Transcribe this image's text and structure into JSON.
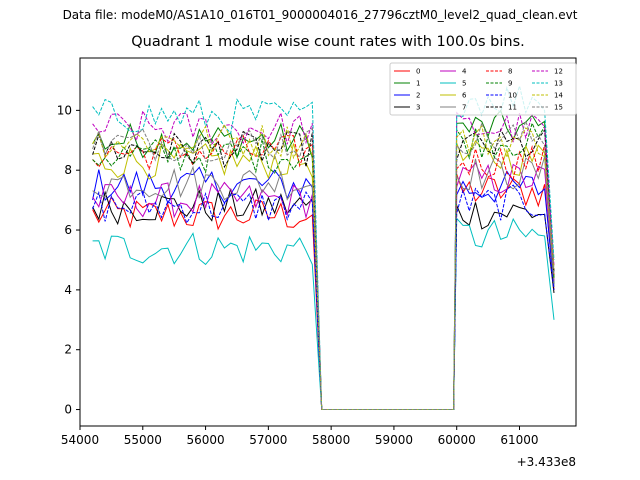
{
  "chart_data": {
    "type": "line",
    "suptitle": "Data file: modeM0/AS1A10_016T01_9000004016_27796cztM0_level2_quad_clean.evt",
    "title": "Quadrant 1 module wise count rates with 100.0s bins.",
    "xlabel": "",
    "ylabel": "",
    "x_offset_label": "+3.433e8",
    "xlim": [
      54000,
      61900
    ],
    "ylim": [
      -0.55,
      11.75
    ],
    "xticks": [
      "54000",
      "55000",
      "56000",
      "57000",
      "58000",
      "59000",
      "60000",
      "61000"
    ],
    "yticks": [
      "0",
      "2",
      "4",
      "6",
      "8",
      "10"
    ],
    "x_start": 54200,
    "bin": 100,
    "gap": [
      57850,
      59950
    ],
    "x_end": 61550,
    "series": [
      {
        "name": "0",
        "color": "#ff0000",
        "dash": "solid",
        "level": 6.5,
        "after": 7.3,
        "last": 4.0
      },
      {
        "name": "1",
        "color": "#008000",
        "dash": "solid",
        "level": 9.0,
        "after": 9.4,
        "last": 4.2
      },
      {
        "name": "2",
        "color": "#0000ff",
        "dash": "solid",
        "level": 7.5,
        "after": 7.4,
        "last": 4.1
      },
      {
        "name": "3",
        "color": "#000000",
        "dash": "solid",
        "level": 6.8,
        "after": 6.6,
        "last": 3.9
      },
      {
        "name": "4",
        "color": "#bf00bf",
        "dash": "solid",
        "level": 7.0,
        "after": 7.7,
        "last": 4.3
      },
      {
        "name": "5",
        "color": "#00bfbf",
        "dash": "solid",
        "level": 5.4,
        "after": 5.8,
        "last": 3.0
      },
      {
        "name": "6",
        "color": "#bfbf00",
        "dash": "solid",
        "level": 8.3,
        "after": 8.4,
        "last": 4.4
      },
      {
        "name": "7",
        "color": "#808080",
        "dash": "solid",
        "level": 7.6,
        "after": 7.9,
        "last": 4.1
      },
      {
        "name": "8",
        "color": "#ff0000",
        "dash": "dashed",
        "level": 8.6,
        "after": 8.3,
        "last": 4.5
      },
      {
        "name": "9",
        "color": "#008000",
        "dash": "dashed",
        "level": 8.5,
        "after": 9.0,
        "last": 4.4
      },
      {
        "name": "10",
        "color": "#0000ff",
        "dash": "dashed",
        "level": 6.8,
        "after": 6.9,
        "last": 4.0
      },
      {
        "name": "11",
        "color": "#000000",
        "dash": "dashed",
        "level": 8.7,
        "after": 8.8,
        "last": 4.6
      },
      {
        "name": "12",
        "color": "#bf00bf",
        "dash": "dashed",
        "level": 9.4,
        "after": 9.4,
        "last": 4.8
      },
      {
        "name": "13",
        "color": "#00bfbf",
        "dash": "dashed",
        "level": 9.8,
        "after": 10.4,
        "last": 5.0
      },
      {
        "name": "14",
        "color": "#bfbf00",
        "dash": "dashed",
        "level": 9.0,
        "after": 9.0,
        "last": 4.7
      },
      {
        "name": "15",
        "color": "#808080",
        "dash": "dashed",
        "level": 8.9,
        "after": 9.1,
        "last": 4.5
      }
    ]
  }
}
